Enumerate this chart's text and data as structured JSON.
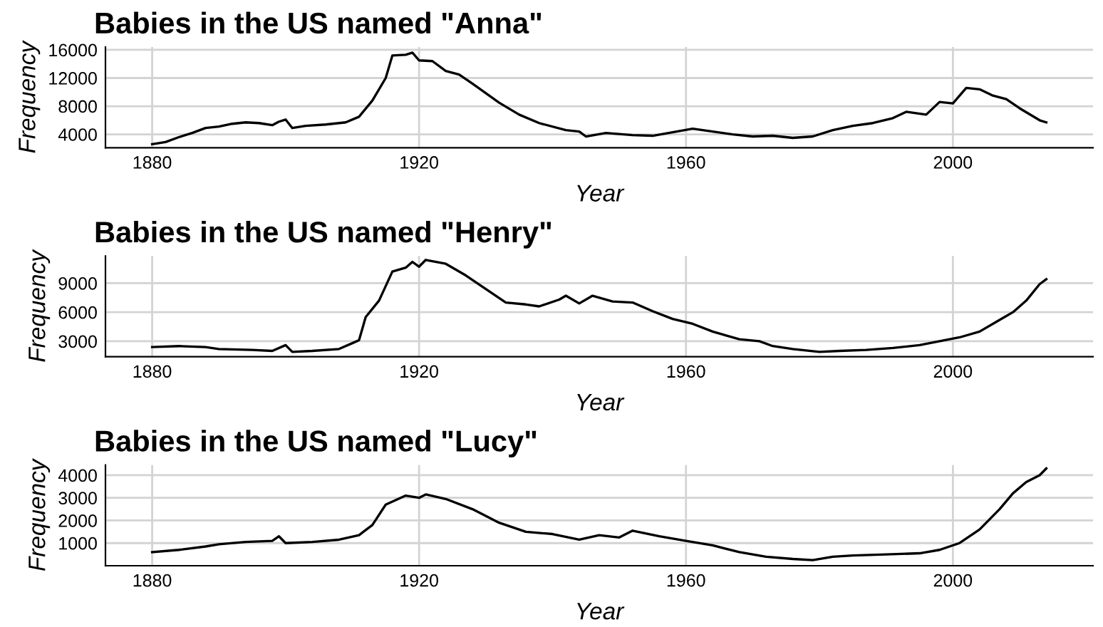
{
  "chart_data": [
    {
      "type": "line",
      "title": "Babies in the US named \"Anna\"",
      "xlabel": "Year",
      "ylabel": "Frequency",
      "xlim": [
        1873,
        2021
      ],
      "xticks": [
        1880,
        1920,
        1960,
        2000
      ],
      "ylim": [
        2100,
        16400
      ],
      "yticks": [
        4000,
        8000,
        12000,
        16000
      ],
      "grid": true,
      "legend": false,
      "series": [
        {
          "color": "#000000",
          "x": [
            1880,
            1882,
            1884,
            1886,
            1888,
            1890,
            1892,
            1894,
            1896,
            1898,
            1899,
            1900,
            1901,
            1903,
            1906,
            1909,
            1911,
            1913,
            1915,
            1916,
            1918,
            1919,
            1920,
            1922,
            1924,
            1926,
            1928,
            1932,
            1935,
            1938,
            1942,
            1944,
            1945,
            1948,
            1952,
            1955,
            1958,
            1961,
            1964,
            1967,
            1970,
            1973,
            1976,
            1979,
            1982,
            1985,
            1988,
            1991,
            1993,
            1996,
            1998,
            2000,
            2002,
            2004,
            2006,
            2008,
            2010,
            2013,
            2014
          ],
          "values": [
            2600,
            2900,
            3600,
            4200,
            4900,
            5100,
            5500,
            5700,
            5600,
            5300,
            5800,
            6100,
            4900,
            5200,
            5400,
            5700,
            6500,
            8800,
            12000,
            15200,
            15300,
            15600,
            14500,
            14400,
            13000,
            12500,
            11200,
            8500,
            6800,
            5600,
            4600,
            4400,
            3700,
            4200,
            3900,
            3800,
            4300,
            4800,
            4400,
            4000,
            3700,
            3800,
            3500,
            3700,
            4600,
            5200,
            5600,
            6300,
            7200,
            6800,
            8600,
            8400,
            10600,
            10400,
            9500,
            9000,
            7700,
            6000,
            5700
          ]
        }
      ]
    },
    {
      "type": "line",
      "title": "Babies in the US named \"Henry\"",
      "xlabel": "Year",
      "ylabel": "Frequency",
      "xlim": [
        1873,
        2021
      ],
      "xticks": [
        1880,
        1920,
        1960,
        2000
      ],
      "ylim": [
        1400,
        11800
      ],
      "yticks": [
        3000,
        6000,
        9000
      ],
      "grid": true,
      "legend": false,
      "series": [
        {
          "color": "#000000",
          "x": [
            1880,
            1884,
            1888,
            1890,
            1895,
            1898,
            1900,
            1901,
            1904,
            1908,
            1910,
            1911,
            1912,
            1914,
            1916,
            1918,
            1919,
            1920,
            1921,
            1924,
            1927,
            1930,
            1933,
            1936,
            1938,
            1941,
            1942,
            1944,
            1946,
            1949,
            1952,
            1955,
            1958,
            1961,
            1964,
            1968,
            1971,
            1973,
            1976,
            1980,
            1983,
            1987,
            1991,
            1995,
            1998,
            2001,
            2004,
            2007,
            2009,
            2011,
            2013,
            2014
          ],
          "values": [
            2400,
            2500,
            2400,
            2200,
            2100,
            2000,
            2600,
            1900,
            2000,
            2200,
            2800,
            3100,
            5500,
            7200,
            10200,
            10600,
            11200,
            10700,
            11400,
            11000,
            9800,
            8400,
            7000,
            6800,
            6600,
            7300,
            7700,
            6900,
            7700,
            7100,
            7000,
            6100,
            5300,
            4800,
            4000,
            3200,
            3000,
            2500,
            2200,
            1900,
            2000,
            2100,
            2300,
            2600,
            3000,
            3400,
            4000,
            5200,
            6000,
            7200,
            8900,
            9400
          ]
        }
      ]
    },
    {
      "type": "line",
      "title": "Babies in the US named \"Lucy\"",
      "xlabel": "Year",
      "ylabel": "Frequency",
      "xlim": [
        1873,
        2021
      ],
      "xticks": [
        1880,
        1920,
        1960,
        2000
      ],
      "ylim": [
        0,
        4450
      ],
      "yticks": [
        1000,
        2000,
        3000,
        4000
      ],
      "grid": true,
      "legend": false,
      "series": [
        {
          "color": "#000000",
          "x": [
            1880,
            1884,
            1888,
            1890,
            1894,
            1898,
            1899,
            1900,
            1904,
            1908,
            1911,
            1913,
            1915,
            1918,
            1920,
            1921,
            1924,
            1928,
            1932,
            1936,
            1940,
            1944,
            1947,
            1950,
            1952,
            1956,
            1960,
            1964,
            1968,
            1972,
            1976,
            1979,
            1982,
            1985,
            1990,
            1995,
            1998,
            2001,
            2004,
            2007,
            2009,
            2011,
            2013,
            2014
          ],
          "values": [
            600,
            700,
            850,
            950,
            1050,
            1100,
            1300,
            1000,
            1050,
            1150,
            1350,
            1800,
            2700,
            3100,
            3000,
            3150,
            2950,
            2500,
            1900,
            1500,
            1400,
            1150,
            1350,
            1250,
            1550,
            1300,
            1100,
            900,
            600,
            400,
            300,
            250,
            400,
            450,
            500,
            550,
            700,
            1000,
            1600,
            2500,
            3200,
            3700,
            4000,
            4300
          ]
        }
      ]
    }
  ]
}
